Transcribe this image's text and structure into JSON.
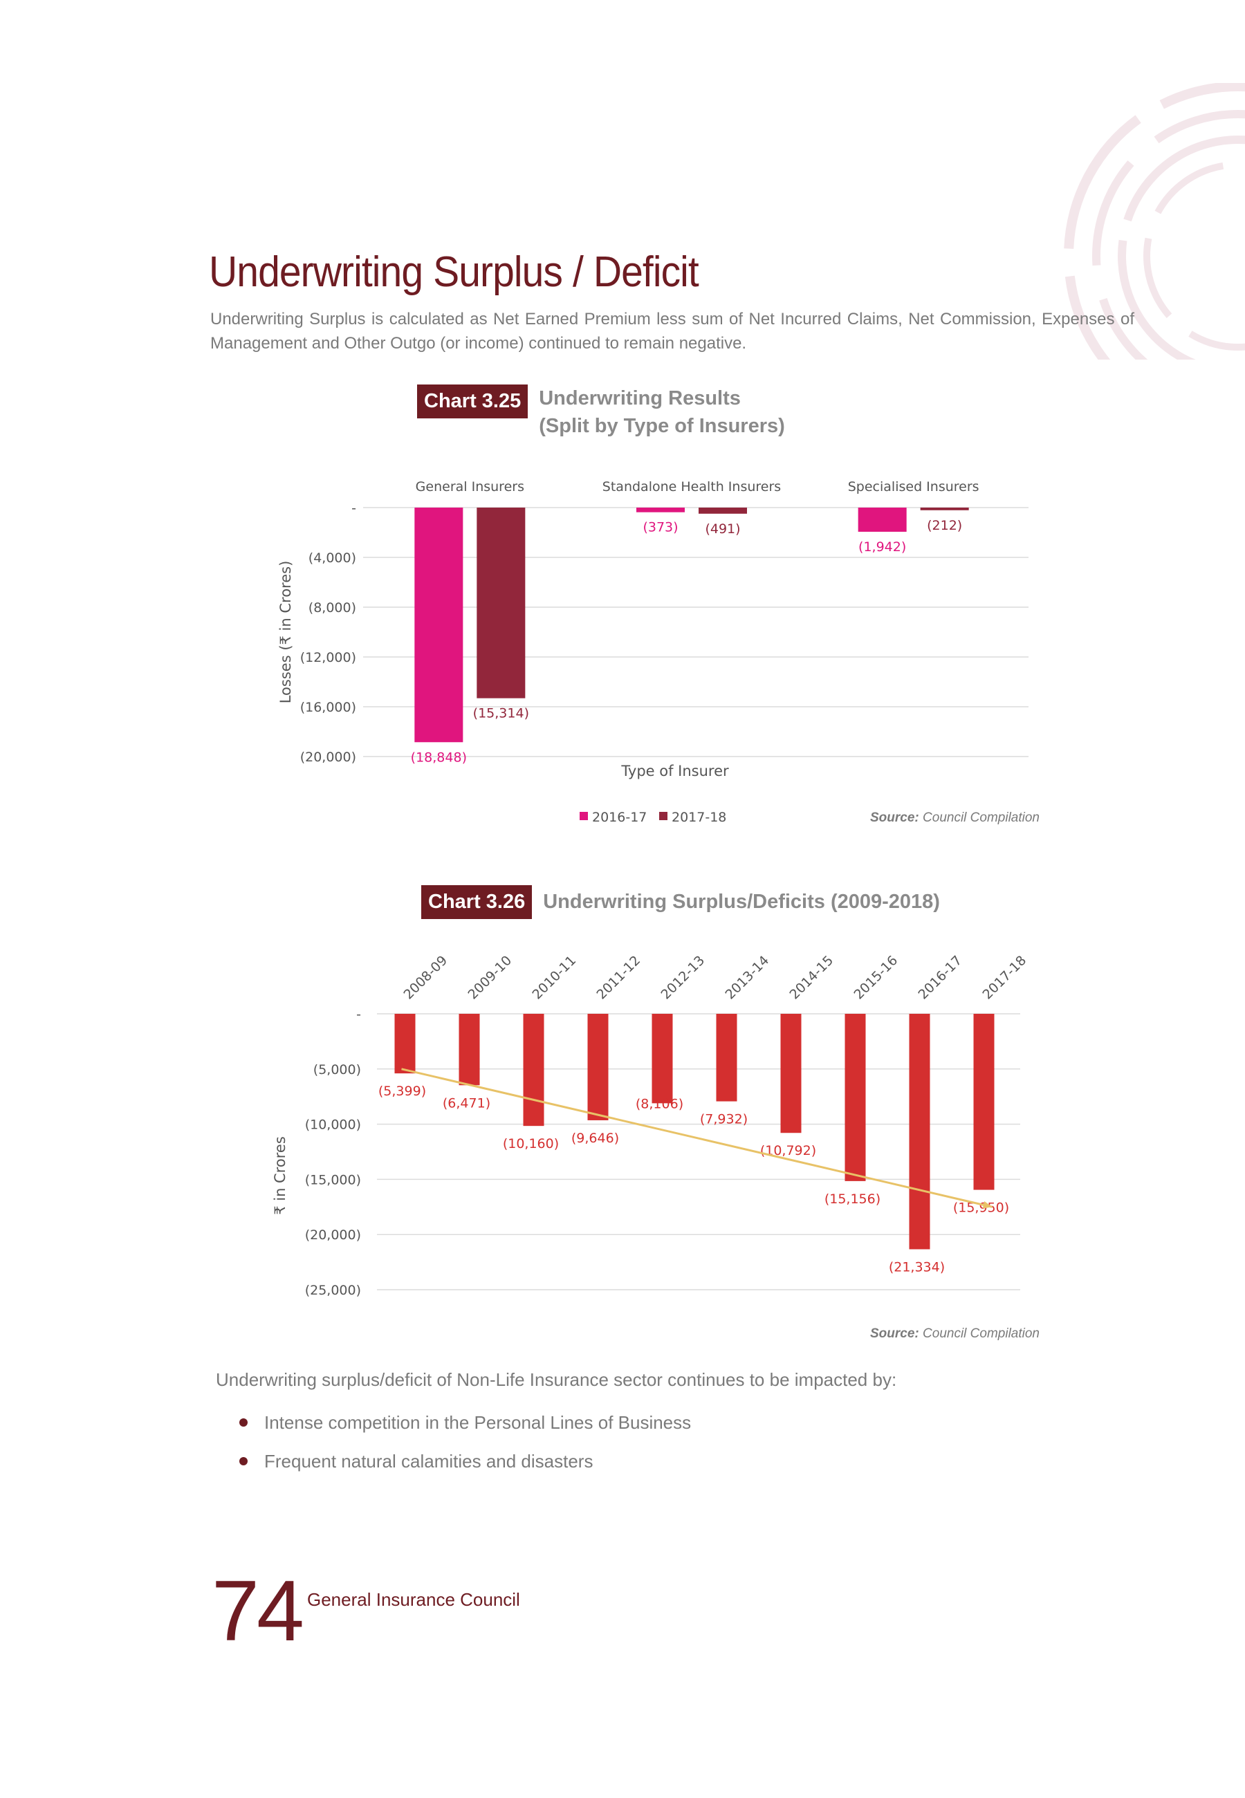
{
  "page": {
    "title": "Underwriting Surplus / Deficit",
    "intro": "Underwriting Surplus is calculated as Net Earned Premium less sum of Net Incurred Claims, Net Commission, Expenses of Management and Other Outgo (or income) continued to remain negative.",
    "body_text": "Underwriting surplus/deficit of Non-Life Insurance sector continues to be impacted by:",
    "bullets": [
      "Intense competition in the Personal Lines of Business",
      "Frequent natural calamities and disasters"
    ],
    "page_number": "74",
    "footer_org": "General Insurance Council"
  },
  "chart_data": [
    {
      "type": "bar",
      "badge": "Chart 3.25",
      "title": "Underwriting Results",
      "subtitle": "(Split by Type of Insurers)",
      "categories": [
        "General Insurers",
        "Standalone Health Insurers",
        "Specialised Insurers"
      ],
      "series": [
        {
          "name": "2016-17",
          "color": "#e0157e",
          "values": [
            -18848,
            -373,
            -1942
          ],
          "labels": [
            "(18,848)",
            "(373)",
            "(1,942)"
          ]
        },
        {
          "name": "2017-18",
          "color": "#92263b",
          "values": [
            -15314,
            -491,
            -212
          ],
          "labels": [
            "(15,314)",
            "(491)",
            "(212)"
          ]
        }
      ],
      "xlabel": "Type of Insurer",
      "ylabel": "Losses (₹ in Crores)",
      "ylim": [
        -20000,
        0
      ],
      "yticks": [
        {
          "value": 0,
          "label": "-"
        },
        {
          "value": -4000,
          "label": "(4,000)"
        },
        {
          "value": -8000,
          "label": "(8,000)"
        },
        {
          "value": -12000,
          "label": "(12,000)"
        },
        {
          "value": -16000,
          "label": "(16,000)"
        },
        {
          "value": -20000,
          "label": "(20,000)"
        }
      ],
      "grid": true,
      "legend_position": "bottom",
      "source_label": "Source:",
      "source_text": "Council Compilation"
    },
    {
      "type": "bar",
      "badge": "Chart 3.26",
      "title": "Underwriting Surplus/Deficits (2009-2018)",
      "categories": [
        "2008-09",
        "2009-10",
        "2010-11",
        "2011-12",
        "2012-13",
        "2013-14",
        "2014-15",
        "2015-16",
        "2016-17",
        "2017-18"
      ],
      "series": [
        {
          "color": "#d42f2f",
          "values": [
            -5399,
            -6471,
            -10160,
            -9646,
            -8106,
            -7932,
            -10792,
            -15156,
            -21334,
            -15950
          ],
          "labels": [
            "(5,399)",
            "(6,471)",
            "(10,160)",
            "(9,646)",
            "(8,106)",
            "(7,932)",
            "(10,792)",
            "(15,156)",
            "(21,334)",
            "(15,950)"
          ]
        }
      ],
      "trendline": {
        "color": "#e8c267",
        "from_value": -5000,
        "to_value": -17500
      },
      "ylabel": "₹ in Crores",
      "ylim": [
        -25000,
        0
      ],
      "yticks": [
        {
          "value": 0,
          "label": "-"
        },
        {
          "value": -5000,
          "label": "(5,000)"
        },
        {
          "value": -10000,
          "label": "(10,000)"
        },
        {
          "value": -15000,
          "label": "(15,000)"
        },
        {
          "value": -20000,
          "label": "(20,000)"
        },
        {
          "value": -25000,
          "label": "(25,000)"
        }
      ],
      "grid": true,
      "source_label": "Source:",
      "source_text": "Council Compilation"
    }
  ]
}
